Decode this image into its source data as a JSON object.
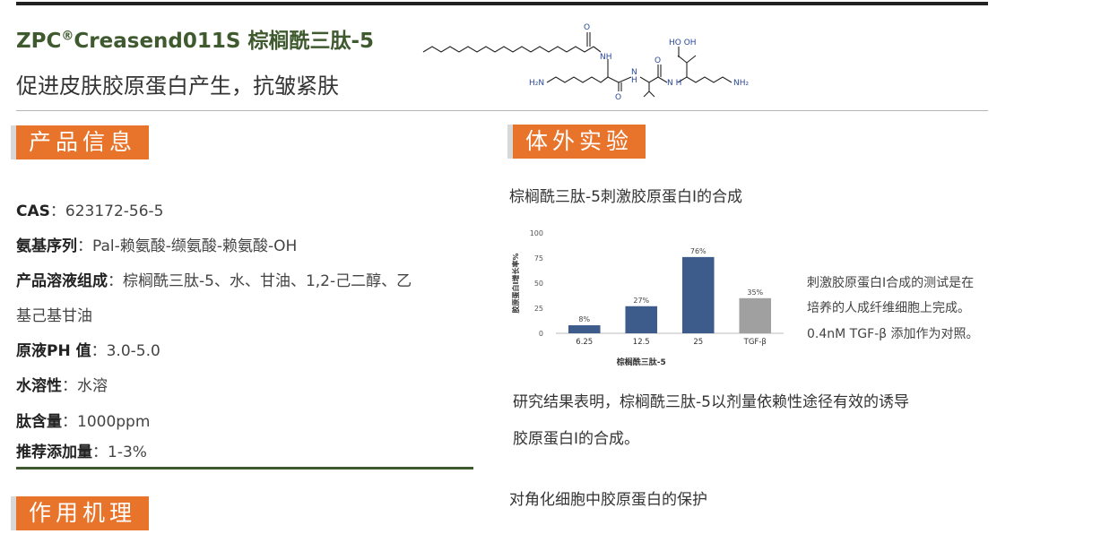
{
  "header": {
    "title_main": "ZPC",
    "title_reg": "®",
    "title_rest": "Creasend011S 棕榈酰三肽-5",
    "subtitle": "促进皮肤胶原蛋白产生，抗皱紧肤",
    "molecule_labels": {
      "nh_top": "NH",
      "nh_mid": "N H",
      "oh": "O",
      "cooh": "HO  OH",
      "h2n_left": "H₂N",
      "nh2_right": "NH₂",
      "o1": "O",
      "o2": "O",
      "o3": "O",
      "h_mid": "N",
      "h_mid2": "H"
    }
  },
  "left": {
    "section1_label": "产品信息",
    "rows": [
      {
        "key": "CAS",
        "sep": "：",
        "value": "623172-56-5"
      },
      {
        "key": "氨基序列",
        "sep": "：",
        "value": "Pal-赖氨酸-缬氨酸-赖氨酸-OH"
      },
      {
        "key": "产品溶液组成",
        "sep": "：",
        "value": "棕榈酰三肽-5、水、甘油、1,2-己二醇、乙"
      },
      {
        "key": "",
        "sep": "",
        "value": "基己基甘油"
      },
      {
        "key": "原液PH 值",
        "sep": "：",
        "value": "3.0-5.0"
      },
      {
        "key": "水溶性",
        "sep": "：",
        "value": "水溶"
      },
      {
        "key": "肽含量",
        "sep": "：",
        "value": "1000ppm"
      },
      {
        "key": "推荐添加量",
        "sep": "：",
        "value": "1-3%"
      }
    ],
    "section2_label": "作用机理"
  },
  "right": {
    "section_label": "体外实验",
    "chart_heading": "棕榈酰三肽-5刺激胶原蛋白I的合成",
    "chart_note_lines": [
      "刺激胶原蛋白I合成的测试是在",
      "培养的人成纤维细胞上完成。",
      "0.4nM TGF-β 添加作为对照。"
    ],
    "result_lines": [
      "研究结果表明，棕榈酰三肽-5以剂量依赖性途径有效的诱导",
      "胶原蛋白I的合成。"
    ],
    "next_heading": "对角化细胞中胶原蛋白的保护"
  },
  "chart_data": {
    "type": "bar",
    "categories": [
      "6.25",
      "12.5",
      "25",
      "TGF-β"
    ],
    "values": [
      8,
      27,
      76,
      35
    ],
    "value_labels": [
      "8%",
      "27%",
      "76%",
      "35%"
    ],
    "ylim": [
      0,
      100
    ],
    "yticks": [
      "0",
      "25",
      "50",
      "75",
      "100"
    ],
    "ylabel": "胶原蛋白I增长率%",
    "xlabel": "棕榈酰三肽-5",
    "colors": [
      "#3d5c8c",
      "#3d5c8c",
      "#3d5c8c",
      "#a0a0a0"
    ],
    "grid": false,
    "legend": "none"
  },
  "colors": {
    "accent": "#e8732a",
    "title_green": "#3f5a2e",
    "bar_blue": "#3d5c8c",
    "bar_grey": "#a0a0a0"
  }
}
